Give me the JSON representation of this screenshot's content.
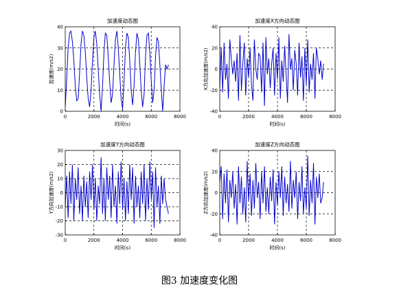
{
  "caption": "图3  加速度变化图",
  "chart_data": [
    {
      "type": "line",
      "title": "加速度动态图",
      "xlabel": "时间(s)",
      "ylabel": "加速度(m/s2)",
      "xlim": [
        0,
        8000
      ],
      "ylim": [
        0,
        40
      ],
      "xticks": [
        0,
        2000,
        4000,
        6000,
        8000
      ],
      "yticks": [
        0,
        10,
        20,
        30,
        40
      ],
      "grid": true,
      "color": "#0000cc",
      "x": [
        0,
        100,
        200,
        300,
        400,
        500,
        600,
        700,
        800,
        900,
        1000,
        1100,
        1200,
        1300,
        1400,
        1500,
        1600,
        1700,
        1800,
        1900,
        2000,
        2100,
        2200,
        2300,
        2400,
        2500,
        2600,
        2700,
        2800,
        2900,
        3000,
        3100,
        3200,
        3300,
        3400,
        3500,
        3600,
        3700,
        3800,
        3900,
        4000,
        4100,
        4200,
        4300,
        4400,
        4500,
        4600,
        4700,
        4800,
        4900,
        5000,
        5100,
        5200,
        5300,
        5400,
        5500,
        5600,
        5700,
        5800,
        5900,
        6000,
        6100,
        6200,
        6300,
        6400,
        6500,
        6600,
        6700,
        6800,
        6900,
        7000,
        7100,
        7200
      ],
      "y": [
        2,
        15,
        30,
        37,
        38,
        33,
        24,
        12,
        5,
        6,
        18,
        32,
        38,
        36,
        28,
        16,
        6,
        2,
        10,
        24,
        35,
        38,
        32,
        20,
        8,
        0,
        12,
        28,
        37,
        36,
        26,
        14,
        4,
        8,
        22,
        34,
        38,
        30,
        18,
        6,
        1,
        14,
        30,
        37,
        35,
        24,
        10,
        3,
        12,
        28,
        37,
        34,
        22,
        10,
        2,
        8,
        26,
        36,
        37,
        28,
        14,
        4,
        10,
        26,
        35,
        33,
        22,
        10,
        0,
        12,
        22,
        20,
        22
      ]
    },
    {
      "type": "line",
      "title": "加速度X方向动态图",
      "xlabel": "时间(s)",
      "ylabel": "X方向加速度(m/s2)",
      "xlim": [
        0,
        8000
      ],
      "ylim": [
        -40,
        40
      ],
      "xticks": [
        0,
        2000,
        4000,
        6000,
        8000
      ],
      "yticks": [
        -40,
        -20,
        0,
        20,
        40
      ],
      "grid": true,
      "color": "#0000cc",
      "x": [
        0,
        100,
        200,
        300,
        400,
        500,
        600,
        700,
        800,
        900,
        1000,
        1100,
        1200,
        1300,
        1400,
        1500,
        1600,
        1700,
        1800,
        1900,
        2000,
        2100,
        2200,
        2300,
        2400,
        2500,
        2600,
        2700,
        2800,
        2900,
        3000,
        3100,
        3200,
        3300,
        3400,
        3500,
        3600,
        3700,
        3800,
        3900,
        4000,
        4100,
        4200,
        4300,
        4400,
        4500,
        4600,
        4700,
        4800,
        4900,
        5000,
        5100,
        5200,
        5300,
        5400,
        5500,
        5600,
        5700,
        5800,
        5900,
        6000,
        6100,
        6200,
        6300,
        6400,
        6500,
        6600,
        6700,
        6800,
        6900,
        7000,
        7100,
        7200
      ],
      "y": [
        -18,
        20,
        -22,
        25,
        -10,
        5,
        -28,
        28,
        10,
        -5,
        8,
        -12,
        15,
        -30,
        32,
        -20,
        5,
        25,
        -25,
        10,
        -8,
        20,
        -15,
        -30,
        28,
        0,
        -10,
        15,
        12,
        -22,
        25,
        -35,
        30,
        -5,
        10,
        -18,
        5,
        20,
        -25,
        15,
        -10,
        30,
        -28,
        8,
        -12,
        22,
        -5,
        -32,
        33,
        0,
        10,
        -20,
        18,
        5,
        -25,
        25,
        -8,
        12,
        -30,
        20,
        -15,
        28,
        -22,
        5,
        -10,
        15,
        -28,
        20,
        10,
        -5,
        8,
        -10,
        5
      ]
    },
    {
      "type": "line",
      "title": "加速度Y方向动态图",
      "xlabel": "时间(s)",
      "ylabel": "Y方向加速度(m/s2)",
      "xlim": [
        0,
        8000
      ],
      "ylim": [
        -30,
        30
      ],
      "xticks": [
        0,
        2000,
        4000,
        6000,
        8000
      ],
      "yticks": [
        -30,
        -20,
        -10,
        0,
        10,
        20,
        30
      ],
      "grid": true,
      "color": "#0000cc",
      "x": [
        0,
        100,
        200,
        300,
        400,
        500,
        600,
        700,
        800,
        900,
        1000,
        1100,
        1200,
        1300,
        1400,
        1500,
        1600,
        1700,
        1800,
        1900,
        2000,
        2100,
        2200,
        2300,
        2400,
        2500,
        2600,
        2700,
        2800,
        2900,
        3000,
        3100,
        3200,
        3300,
        3400,
        3500,
        3600,
        3700,
        3800,
        3900,
        4000,
        4100,
        4200,
        4300,
        4400,
        4500,
        4600,
        4700,
        4800,
        4900,
        5000,
        5100,
        5200,
        5300,
        5400,
        5500,
        5600,
        5700,
        5800,
        5900,
        6000,
        6100,
        6200,
        6300,
        6400,
        6500,
        6600,
        6700,
        6800,
        6900,
        7000,
        7100,
        7200
      ],
      "y": [
        -10,
        12,
        -18,
        15,
        -8,
        20,
        -20,
        10,
        -5,
        18,
        -15,
        5,
        -20,
        12,
        -10,
        8,
        -18,
        15,
        -5,
        20,
        -12,
        10,
        -20,
        5,
        -8,
        25,
        -15,
        10,
        -20,
        18,
        -5,
        12,
        -18,
        20,
        -10,
        5,
        -22,
        15,
        -8,
        22,
        -12,
        10,
        -20,
        8,
        -15,
        20,
        -5,
        18,
        -22,
        12,
        -10,
        5,
        -18,
        15,
        -8,
        20,
        -20,
        10,
        -12,
        22,
        -5,
        15,
        -25,
        18,
        -10,
        5,
        -22,
        12,
        -8,
        10,
        -5,
        -10,
        -15
      ]
    },
    {
      "type": "line",
      "title": "加速度Z方向动态图",
      "xlabel": "时间(s)",
      "ylabel": "Z方向加速度(m/s2)",
      "xlim": [
        0,
        8000
      ],
      "ylim": [
        -40,
        40
      ],
      "xticks": [
        0,
        2000,
        4000,
        6000,
        8000
      ],
      "yticks": [
        -40,
        -20,
        0,
        20,
        40
      ],
      "grid": true,
      "color": "#0000cc",
      "x": [
        0,
        100,
        200,
        300,
        400,
        500,
        600,
        700,
        800,
        900,
        1000,
        1100,
        1200,
        1300,
        1400,
        1500,
        1600,
        1700,
        1800,
        1900,
        2000,
        2100,
        2200,
        2300,
        2400,
        2500,
        2600,
        2700,
        2800,
        2900,
        3000,
        3100,
        3200,
        3300,
        3400,
        3500,
        3600,
        3700,
        3800,
        3900,
        4000,
        4100,
        4200,
        4300,
        4400,
        4500,
        4600,
        4700,
        4800,
        4900,
        5000,
        5100,
        5200,
        5300,
        5400,
        5500,
        5600,
        5700,
        5800,
        5900,
        6000,
        6100,
        6200,
        6300,
        6400,
        6500,
        6600,
        6700,
        6800,
        6900,
        7000,
        7100,
        7200
      ],
      "y": [
        10,
        25,
        -25,
        18,
        -10,
        22,
        -28,
        12,
        -5,
        20,
        -15,
        8,
        -30,
        25,
        -10,
        15,
        -20,
        5,
        -28,
        30,
        -8,
        18,
        -22,
        12,
        -15,
        28,
        -5,
        10,
        -25,
        20,
        -10,
        25,
        -18,
        5,
        -20,
        15,
        -8,
        22,
        -30,
        10,
        -12,
        20,
        -5,
        25,
        -22,
        15,
        -10,
        8,
        -18,
        30,
        -15,
        12,
        -5,
        20,
        -25,
        10,
        -8,
        25,
        -20,
        5,
        -15,
        35,
        -22,
        12,
        -10,
        28,
        -30,
        15,
        -5,
        18,
        -10,
        -5,
        10
      ]
    }
  ]
}
